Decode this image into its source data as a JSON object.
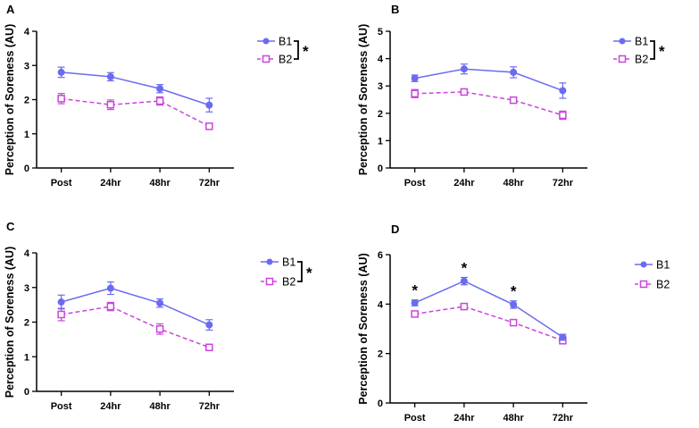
{
  "chart_data": [
    {
      "type": "line",
      "panel_label": "A",
      "categories": [
        "Post",
        "24hr",
        "48hr",
        "72hr"
      ],
      "ylabel": "Perception of Soreness (AU)",
      "ylim": [
        0,
        4
      ],
      "yticks": [
        "0",
        "1",
        "2",
        "3",
        "4"
      ],
      "grid": false,
      "legend_position": "top-right",
      "significance_marker": "*",
      "point_markers": [
        "",
        "",
        "",
        ""
      ],
      "series": [
        {
          "name": "B1",
          "values": [
            2.8,
            2.67,
            2.32,
            1.84
          ],
          "errors": [
            0.15,
            0.12,
            0.12,
            0.2
          ],
          "color": "#6b6bf0",
          "line_style": "solid",
          "marker": "filled-circle"
        },
        {
          "name": "B2",
          "values": [
            2.03,
            1.85,
            1.96,
            1.22
          ],
          "errors": [
            0.15,
            0.14,
            0.12,
            0.05
          ],
          "color": "#cc44dd",
          "line_style": "dashed",
          "marker": "hollow-square"
        }
      ]
    },
    {
      "type": "line",
      "panel_label": "B",
      "categories": [
        "Post",
        "24hr",
        "48hr",
        "72hr"
      ],
      "ylabel": "Perception of Soreness (AU)",
      "ylim": [
        0,
        5
      ],
      "yticks": [
        "0",
        "1",
        "2",
        "3",
        "4",
        "5"
      ],
      "grid": false,
      "legend_position": "top-right",
      "significance_marker": "*",
      "point_markers": [
        "",
        "",
        "",
        ""
      ],
      "series": [
        {
          "name": "B1",
          "values": [
            3.28,
            3.62,
            3.5,
            2.83
          ],
          "errors": [
            0.12,
            0.18,
            0.2,
            0.28
          ],
          "color": "#6b6bf0",
          "line_style": "solid",
          "marker": "filled-circle"
        },
        {
          "name": "B2",
          "values": [
            2.72,
            2.78,
            2.48,
            1.93
          ],
          "errors": [
            0.15,
            0.1,
            0.1,
            0.15
          ],
          "color": "#cc44dd",
          "line_style": "dashed",
          "marker": "hollow-square"
        }
      ]
    },
    {
      "type": "line",
      "panel_label": "C",
      "categories": [
        "Post",
        "24hr",
        "48hr",
        "72hr"
      ],
      "ylabel": "Perception of Soreness (AU)",
      "ylim": [
        0,
        4
      ],
      "yticks": [
        "0",
        "1",
        "2",
        "3",
        "4"
      ],
      "grid": false,
      "legend_position": "top-right",
      "significance_marker": "*",
      "point_markers": [
        "",
        "",
        "",
        ""
      ],
      "series": [
        {
          "name": "B1",
          "values": [
            2.58,
            2.98,
            2.55,
            1.92
          ],
          "errors": [
            0.2,
            0.18,
            0.12,
            0.15
          ],
          "color": "#6b6bf0",
          "line_style": "solid",
          "marker": "filled-circle"
        },
        {
          "name": "B2",
          "values": [
            2.22,
            2.45,
            1.8,
            1.27
          ],
          "errors": [
            0.18,
            0.12,
            0.15,
            0.06
          ],
          "color": "#cc44dd",
          "line_style": "dashed",
          "marker": "hollow-square"
        }
      ]
    },
    {
      "type": "line",
      "panel_label": "D",
      "categories": [
        "Post",
        "24hr",
        "48hr",
        "72hr"
      ],
      "ylabel": "Perception of Soreness (AU)",
      "ylim": [
        0,
        6
      ],
      "yticks": [
        "0",
        "2",
        "4",
        "6"
      ],
      "grid": false,
      "legend_position": "top-right",
      "significance_marker": "",
      "point_markers": [
        "*",
        "*",
        "*",
        ""
      ],
      "series": [
        {
          "name": "B1",
          "values": [
            4.05,
            4.93,
            3.98,
            2.66
          ],
          "errors": [
            0.12,
            0.15,
            0.15,
            0.12
          ],
          "color": "#6b6bf0",
          "line_style": "solid",
          "marker": "filled-circle"
        },
        {
          "name": "B2",
          "values": [
            3.6,
            3.9,
            3.25,
            2.52
          ],
          "errors": [
            0.12,
            0.08,
            0.1,
            0.08
          ],
          "color": "#cc44dd",
          "line_style": "dashed",
          "marker": "hollow-square"
        }
      ]
    }
  ]
}
